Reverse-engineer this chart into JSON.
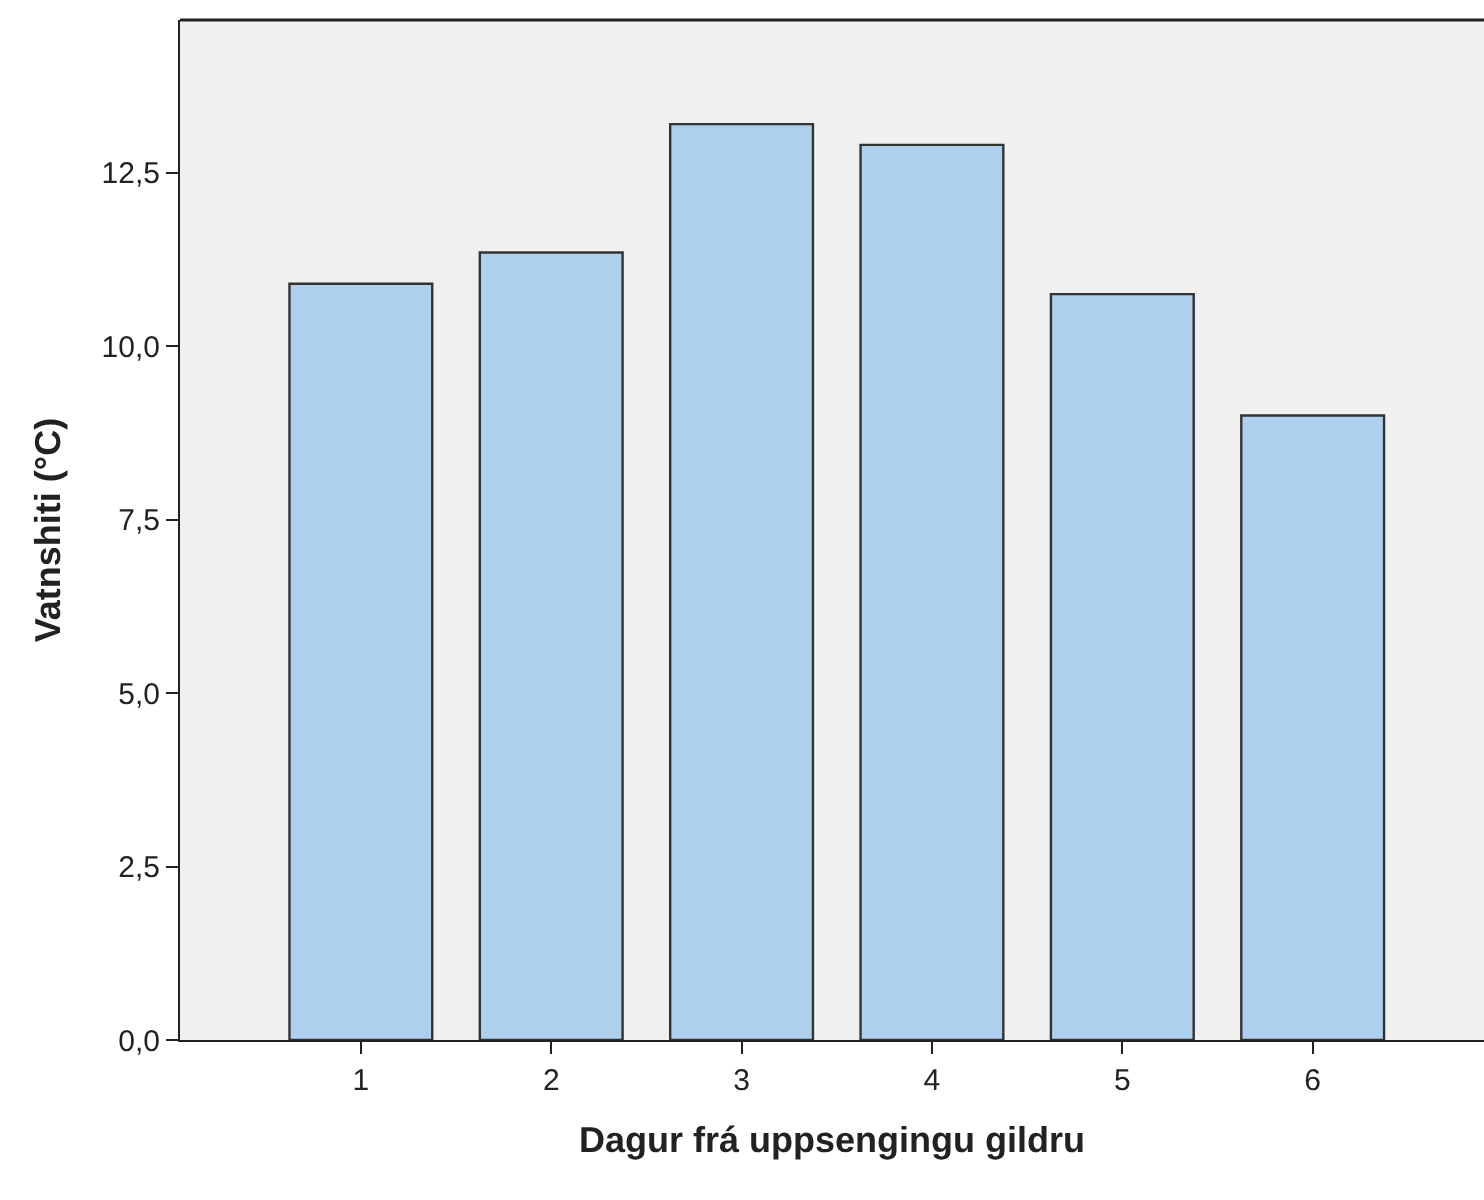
{
  "chart_data": {
    "type": "bar",
    "xlabel": "Dagur frá uppsengingu gildru",
    "ylabel": "Vatnshiti (°C)",
    "categories": [
      "1",
      "2",
      "3",
      "4",
      "5",
      "6"
    ],
    "values": [
      10.9,
      11.35,
      13.2,
      12.9,
      10.75,
      9.0
    ],
    "color": "#aecfee",
    "ylim": [
      0,
      14.7
    ],
    "yticks": [
      {
        "value": 0,
        "label": "0,0"
      },
      {
        "value": 2.5,
        "label": "2,5"
      },
      {
        "value": 5,
        "label": "5,0"
      },
      {
        "value": 7.5,
        "label": "7,5"
      },
      {
        "value": 10,
        "label": "10,0"
      },
      {
        "value": 12.5,
        "label": "12,5"
      }
    ],
    "grid": false
  }
}
